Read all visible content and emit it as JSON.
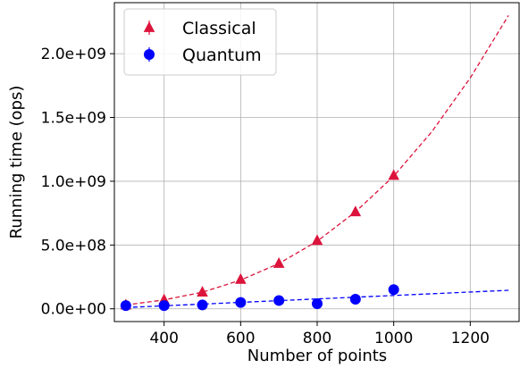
{
  "chart_data": {
    "type": "scatter",
    "xlabel": "Number of points",
    "ylabel": "Running time (ops)",
    "xlim": [
      270,
      1330
    ],
    "ylim": [
      -100000000,
      2400000000
    ],
    "xticks": [
      400,
      600,
      800,
      1000,
      1200
    ],
    "xtick_labels": [
      "400",
      "600",
      "800",
      "1000",
      "1200"
    ],
    "yticks": [
      0,
      500000000,
      1000000000,
      1500000000,
      2000000000
    ],
    "ytick_labels": [
      "0.0e+00",
      "5.0e+08",
      "1.0e+09",
      "1.5e+09",
      "2.0e+09"
    ],
    "grid": true,
    "legend_position": "top-left",
    "series": [
      {
        "name": "Classical",
        "marker": "triangle",
        "color": "#dc143c",
        "x": [
          300,
          400,
          500,
          600,
          700,
          800,
          900,
          1000
        ],
        "y": [
          30000000,
          70000000,
          130000000,
          230000000,
          355000000,
          535000000,
          760000000,
          1045000000
        ],
        "fit": {
          "x": [
            300,
            400,
            500,
            600,
            700,
            800,
            900,
            1000,
            1100,
            1200,
            1300
          ],
          "y": [
            30000000,
            70000000,
            130000000,
            225000000,
            355000000,
            530000000,
            760000000,
            1040000000,
            1390000000,
            1810000000,
            2300000000
          ]
        }
      },
      {
        "name": "Quantum",
        "marker": "circle",
        "color": "#0000ff",
        "x": [
          300,
          400,
          500,
          600,
          700,
          800,
          900,
          1000
        ],
        "y": [
          25000000,
          25000000,
          30000000,
          50000000,
          65000000,
          40000000,
          75000000,
          150000000
        ],
        "fit": {
          "x": [
            300,
            1300
          ],
          "y": [
            10000000,
            145000000
          ]
        }
      }
    ]
  }
}
